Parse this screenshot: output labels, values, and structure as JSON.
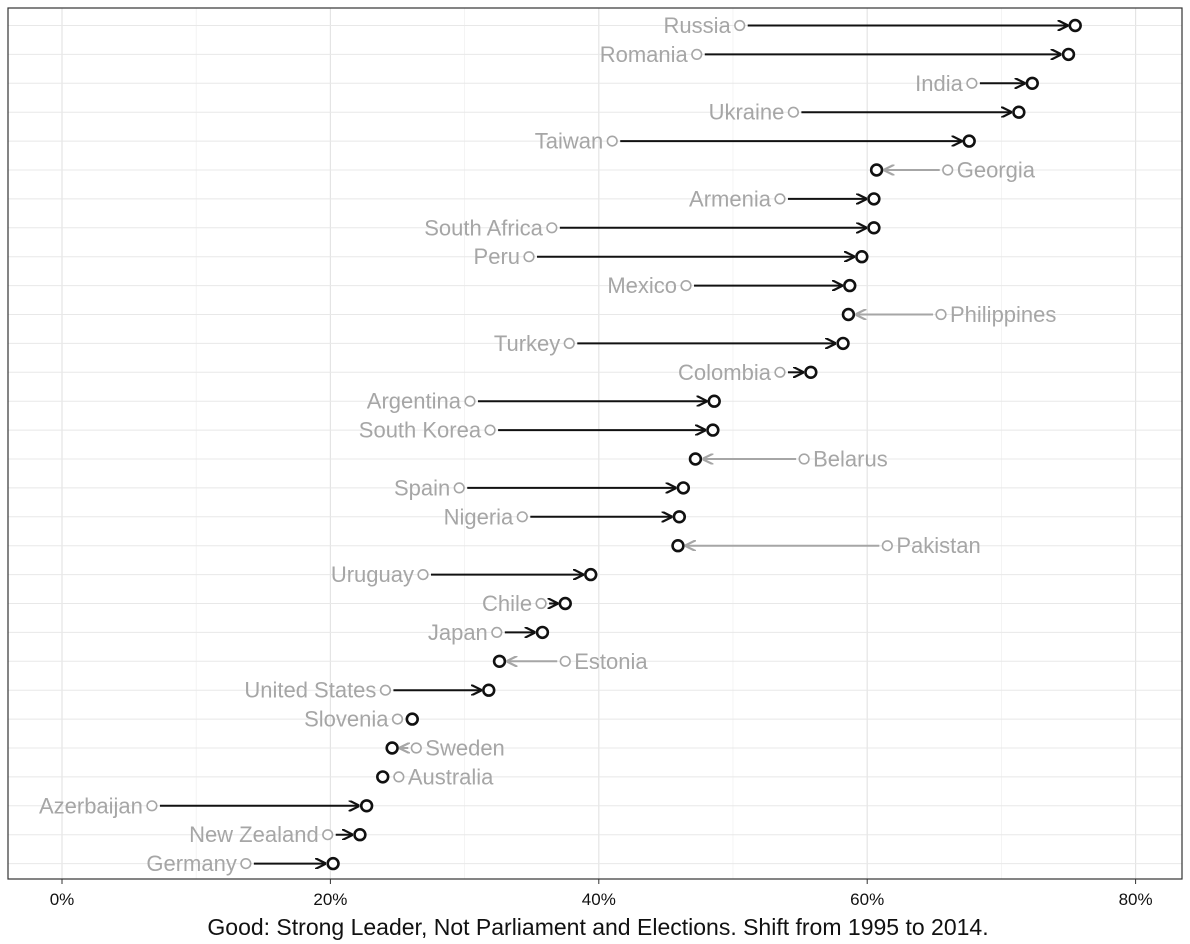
{
  "chart_data": {
    "type": "dumbbell-arrow",
    "xlabel": "Good: Strong Leader, Not Parliament and Elections. Shift from 1995 to 2014.",
    "x_ticks": [
      "0%",
      "20%",
      "40%",
      "60%",
      "80%"
    ],
    "x_tick_values": [
      0,
      20,
      40,
      60,
      80
    ],
    "xlim": [
      -4,
      84
    ],
    "grid": true,
    "colors": {
      "increase": "#111111",
      "decrease": "#a6a6a6",
      "label": "#a6a6a6"
    },
    "rows": [
      {
        "country": "Russia",
        "v1995": 50.5,
        "v2014": 75.5
      },
      {
        "country": "Romania",
        "v1995": 47.3,
        "v2014": 75.0
      },
      {
        "country": "India",
        "v1995": 67.8,
        "v2014": 72.3
      },
      {
        "country": "Ukraine",
        "v1995": 54.5,
        "v2014": 71.3
      },
      {
        "country": "Taiwan",
        "v1995": 41.0,
        "v2014": 67.6
      },
      {
        "country": "Georgia",
        "v1995": 66.0,
        "v2014": 60.7
      },
      {
        "country": "Armenia",
        "v1995": 53.5,
        "v2014": 60.5
      },
      {
        "country": "South Africa",
        "v1995": 36.5,
        "v2014": 60.5
      },
      {
        "country": "Peru",
        "v1995": 34.8,
        "v2014": 59.6
      },
      {
        "country": "Mexico",
        "v1995": 46.5,
        "v2014": 58.7
      },
      {
        "country": "Philippines",
        "v1995": 65.5,
        "v2014": 58.6
      },
      {
        "country": "Turkey",
        "v1995": 37.8,
        "v2014": 58.2
      },
      {
        "country": "Colombia",
        "v1995": 53.5,
        "v2014": 55.8
      },
      {
        "country": "Argentina",
        "v1995": 30.4,
        "v2014": 48.6
      },
      {
        "country": "South Korea",
        "v1995": 31.9,
        "v2014": 48.5
      },
      {
        "country": "Belarus",
        "v1995": 55.3,
        "v2014": 47.2
      },
      {
        "country": "Spain",
        "v1995": 29.6,
        "v2014": 46.3
      },
      {
        "country": "Nigeria",
        "v1995": 34.3,
        "v2014": 46.0
      },
      {
        "country": "Pakistan",
        "v1995": 61.5,
        "v2014": 45.9
      },
      {
        "country": "Uruguay",
        "v1995": 26.9,
        "v2014": 39.4
      },
      {
        "country": "Chile",
        "v1995": 35.7,
        "v2014": 37.5
      },
      {
        "country": "Japan",
        "v1995": 32.4,
        "v2014": 35.8
      },
      {
        "country": "Estonia",
        "v1995": 37.5,
        "v2014": 32.6
      },
      {
        "country": "United States",
        "v1995": 24.1,
        "v2014": 31.8
      },
      {
        "country": "Slovenia",
        "v1995": 25.0,
        "v2014": 26.1
      },
      {
        "country": "Sweden",
        "v1995": 26.4,
        "v2014": 24.6
      },
      {
        "country": "Australia",
        "v1995": 25.1,
        "v2014": 23.9
      },
      {
        "country": "Azerbaijan",
        "v1995": 6.7,
        "v2014": 22.7
      },
      {
        "country": "New Zealand",
        "v1995": 19.8,
        "v2014": 22.2
      },
      {
        "country": "Germany",
        "v1995": 13.7,
        "v2014": 20.2
      }
    ]
  }
}
